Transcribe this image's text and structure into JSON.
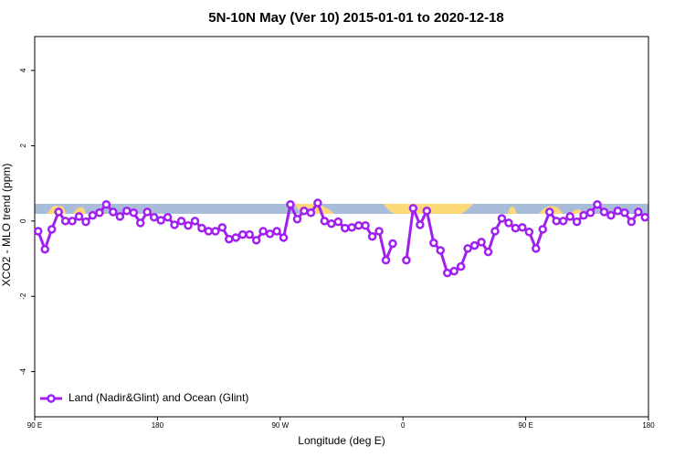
{
  "chart_data": {
    "type": "line",
    "title": "5N-10N May (Ver 10)   2015-01-01 to 2020-12-18",
    "x_label": "Longitude (deg E)",
    "y_label": "XCO2 - MLO trend (ppm)",
    "x": [
      92.5,
      97.5,
      102.5,
      107.5,
      112.5,
      117.5,
      122.5,
      127.5,
      132.5,
      137.5,
      142.5,
      147.5,
      152.5,
      157.5,
      162.5,
      167.5,
      172.5,
      177.5,
      182.5,
      187.5,
      192.5,
      197.5,
      202.5,
      207.5,
      212.5,
      217.5,
      222.5,
      227.5,
      232.5,
      237.5,
      242.5,
      247.5,
      252.5,
      257.5,
      262.5,
      267.5,
      272.5,
      277.5,
      282.5,
      287.5,
      292.5,
      297.5,
      302.5,
      307.5,
      312.5,
      317.5,
      322.5,
      327.5,
      332.5,
      337.5,
      342.5,
      347.5,
      352.5,
      357.5,
      362.5,
      367.5,
      372.5,
      377.5,
      382.5,
      387.5,
      392.5,
      397.5,
      402.5,
      407.5,
      412.5,
      417.5,
      422.5,
      427.5,
      432.5,
      437.5,
      442.5,
      447.5,
      452.5,
      457.5,
      462.5,
      467.5,
      472.5,
      477.5,
      482.5,
      487.5,
      492.5,
      497.5,
      502.5,
      507.5,
      512.5,
      517.5,
      522.5,
      527.5,
      532.5,
      537.5
    ],
    "series": [
      {
        "name": "Land (Nadir&Glint) and Ocean (Glint)",
        "color": "#a020f0",
        "values": [
          -0.27,
          -0.75,
          -0.22,
          0.24,
          0,
          0,
          0.12,
          -0.02,
          0.15,
          0.22,
          0.44,
          0.24,
          0.12,
          0.27,
          0.22,
          -0.05,
          0.24,
          0.1,
          0.02,
          0.1,
          -0.1,
          0,
          -0.12,
          0,
          -0.19,
          -0.27,
          -0.27,
          -0.17,
          -0.48,
          -0.44,
          -0.36,
          -0.36,
          -0.51,
          -0.27,
          -0.34,
          -0.27,
          -0.44,
          0.44,
          0.05,
          0.27,
          0.22,
          0.48,
          0,
          -0.07,
          -0.02,
          -0.19,
          -0.17,
          -0.12,
          -0.12,
          -0.41,
          -0.27,
          -1.04,
          -0.6,
          null,
          -1.04,
          0.34,
          -0.1,
          0.27,
          -0.58,
          -0.78,
          -1.38,
          -1.33,
          -1.21,
          -0.73,
          -0.65,
          -0.56,
          -0.82,
          -0.27,
          0.07,
          -0.05,
          -0.19,
          -0.17,
          -0.29,
          -0.73,
          -0.22,
          0.24,
          0,
          0,
          0.12,
          -0.02,
          0.15,
          0.22,
          0.44,
          0.24,
          0.15,
          0.27,
          0.22,
          -0.02,
          0.24,
          0.1
        ]
      }
    ],
    "xlim": [
      90,
      540
    ],
    "xticks": [
      {
        "value": 90,
        "label": "90 E"
      },
      {
        "value": 180,
        "label": "180"
      },
      {
        "value": 270,
        "label": "90 W"
      },
      {
        "value": 360,
        "label": "0"
      },
      {
        "value": 450,
        "label": "90 E"
      },
      {
        "value": 540,
        "label": "180"
      }
    ],
    "ylim": [
      -5.2,
      4.9
    ],
    "yticks": [
      -4,
      -2,
      0,
      2,
      4
    ],
    "legend": "bottom-left"
  }
}
